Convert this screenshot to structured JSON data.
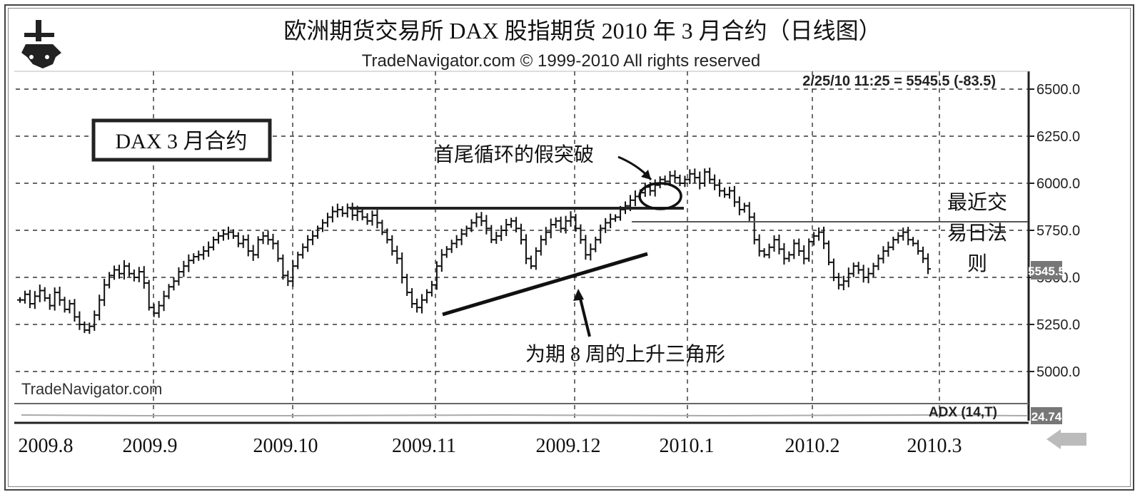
{
  "chart_data": {
    "type": "ohlc",
    "title": "欧洲期货交易所 DAX 股指期货 2010 年 3 月合约（日线图）",
    "subtitle": "TradeNavigator.com © 1999-2010 All rights reserved",
    "watermark": "TradeNavigator.com",
    "legend_box": "DAX 3 月合约",
    "price_readout": "2/25/10 11:25 = 5545.5 (-83.5)",
    "last_price_tag": "5545.5",
    "indicator_label": "ADX (14,T)",
    "indicator_value": "24.74",
    "ylim": [
      4850,
      6600
    ],
    "y_ticks": [
      "6500.0",
      "6250.0",
      "6000.0",
      "5750.0",
      "5500.0",
      "5250.0",
      "5000.0"
    ],
    "x_tick_labels": [
      "2009.8",
      "2009.9",
      "2009.10",
      "2009.11",
      "2009.12",
      "2010.1",
      "2010.2",
      "2010.3"
    ],
    "annotations": {
      "false_breakout": "首尾循环的假突破",
      "triangle": "为期 8 周的上升三角形",
      "last_day_rule": [
        "最近交",
        "易日法",
        "则"
      ]
    },
    "key_levels": {
      "resistance": 5875,
      "support_line": 5800
    },
    "closes": [
      5380,
      5410,
      5360,
      5400,
      5430,
      5390,
      5350,
      5420,
      5380,
      5330,
      5360,
      5290,
      5250,
      5220,
      5240,
      5300,
      5380,
      5460,
      5510,
      5540,
      5520,
      5560,
      5520,
      5500,
      5530,
      5470,
      5340,
      5310,
      5350,
      5400,
      5450,
      5480,
      5530,
      5560,
      5590,
      5610,
      5620,
      5640,
      5660,
      5700,
      5720,
      5730,
      5740,
      5720,
      5680,
      5700,
      5640,
      5620,
      5700,
      5720,
      5700,
      5680,
      5600,
      5510,
      5480,
      5560,
      5620,
      5660,
      5700,
      5720,
      5760,
      5790,
      5820,
      5850,
      5860,
      5840,
      5870,
      5830,
      5850,
      5820,
      5800,
      5830,
      5790,
      5740,
      5700,
      5640,
      5600,
      5500,
      5420,
      5360,
      5340,
      5380,
      5420,
      5460,
      5560,
      5620,
      5650,
      5680,
      5700,
      5730,
      5760,
      5790,
      5820,
      5800,
      5760,
      5700,
      5720,
      5750,
      5780,
      5800,
      5760,
      5700,
      5600,
      5560,
      5640,
      5700,
      5740,
      5780,
      5800,
      5760,
      5800,
      5820,
      5760,
      5700,
      5620,
      5650,
      5700,
      5760,
      5790,
      5810,
      5820,
      5860,
      5880,
      5910,
      5930,
      5950,
      5980,
      5960,
      5990,
      6020,
      6010,
      6040,
      6030,
      6000,
      6020,
      6050,
      6030,
      6000,
      6060,
      6020,
      5990,
      5960,
      5940,
      5960,
      5900,
      5860,
      5880,
      5820,
      5700,
      5640,
      5620,
      5660,
      5700,
      5650,
      5600,
      5620,
      5680,
      5640,
      5600,
      5690,
      5720,
      5740,
      5680,
      5580,
      5500,
      5460,
      5480,
      5520,
      5560,
      5540,
      5500,
      5520,
      5560,
      5600,
      5640,
      5660,
      5700,
      5720,
      5740,
      5700,
      5680,
      5640,
      5600,
      5545
    ]
  }
}
